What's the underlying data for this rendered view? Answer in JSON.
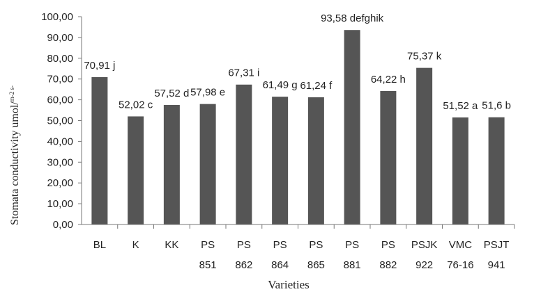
{
  "chart_data": {
    "type": "bar",
    "xlabel": "Varieties",
    "ylabel": "Stomata conductivity umol/",
    "ylabel_unit": "m-2 s-",
    "ylim": [
      0,
      100
    ],
    "ytick_labels": [
      "0,00",
      "10,00",
      "20,00",
      "30,00",
      "40,00",
      "50,00",
      "60,00",
      "70,00",
      "80,00",
      "90,00",
      "100,00"
    ],
    "categories": [
      {
        "line1": "BL",
        "line2": ""
      },
      {
        "line1": "K",
        "line2": ""
      },
      {
        "line1": "KK",
        "line2": ""
      },
      {
        "line1": "PS",
        "line2": "851"
      },
      {
        "line1": "PS",
        "line2": "862"
      },
      {
        "line1": "PS",
        "line2": "864"
      },
      {
        "line1": "PS",
        "line2": "865"
      },
      {
        "line1": "PS",
        "line2": "881"
      },
      {
        "line1": "PS",
        "line2": "882"
      },
      {
        "line1": "PSJK",
        "line2": "922"
      },
      {
        "line1": "VMC",
        "line2": "76-16"
      },
      {
        "line1": "PSJT",
        "line2": "941"
      }
    ],
    "values": [
      70.91,
      52.02,
      57.52,
      57.98,
      67.31,
      61.49,
      61.24,
      93.58,
      64.22,
      75.37,
      51.52,
      51.6
    ],
    "data_labels": [
      "70,91 j",
      "52,02 c",
      "57,52 d",
      "57,98 e",
      "67,31 i",
      "61,49 g",
      "61,24 f",
      "93,58 defghik",
      "64,22 h",
      "75,37 k",
      "51,52 a",
      "51,6 b"
    ],
    "bar_color": "#555555",
    "grid": false,
    "legend": "none"
  }
}
